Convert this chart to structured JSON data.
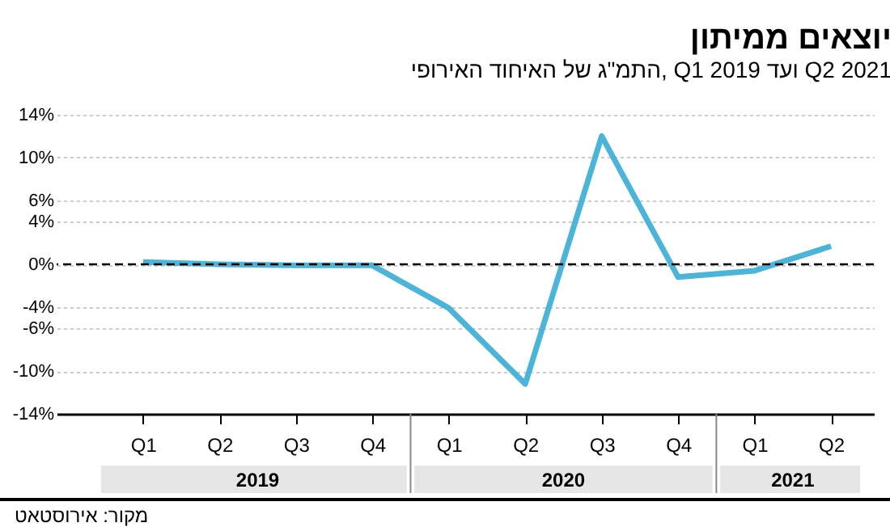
{
  "chart_data": {
    "type": "line",
    "title": "יוצאים ממיתון",
    "subtitle": "התמ\"ג של האיחוד האירופי, Q1 2019 ועד Q2 2021",
    "categories": [
      "Q1",
      "Q2",
      "Q3",
      "Q4",
      "Q1",
      "Q2",
      "Q3",
      "Q4",
      "Q1",
      "Q2"
    ],
    "series": [
      {
        "color": "#4ab5d9",
        "values": [
          0.2,
          0.0,
          -0.1,
          -0.1,
          -4.1,
          -11.2,
          12.0,
          -1.2,
          -0.6,
          1.7
        ]
      }
    ],
    "ylim": [
      -14,
      14
    ],
    "yticks": [
      {
        "value": -14,
        "label": "-14%"
      },
      {
        "value": -10,
        "label": "-10%"
      },
      {
        "value": -6,
        "label": "-6%"
      },
      {
        "value": -4,
        "label": "-4%"
      },
      {
        "value": 0,
        "label": "0%"
      },
      {
        "value": 4,
        "label": "4%"
      },
      {
        "value": 6,
        "label": "6%"
      },
      {
        "value": 10,
        "label": "10%"
      },
      {
        "value": 14,
        "label": "14%"
      }
    ],
    "ref_lines": [
      {
        "axis": "y",
        "value": 0,
        "line_style": "dashed",
        "color": "#000000"
      }
    ],
    "grid": "y",
    "legend": false,
    "marker": "none",
    "line_style": "solid",
    "annotations": [
      "2019",
      "2020",
      "2021",
      "מקור: אירוסטאט"
    ]
  }
}
